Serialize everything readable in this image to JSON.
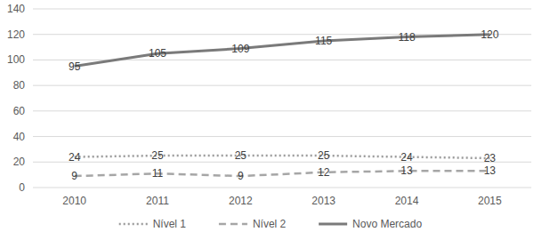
{
  "chart_data": {
    "type": "line",
    "categories": [
      "2010",
      "2011",
      "2012",
      "2013",
      "2014",
      "2015"
    ],
    "series": [
      {
        "name": "Nível 1",
        "color": "#9a9a9a",
        "line_style": "dotted",
        "values": [
          24,
          25,
          25,
          25,
          24,
          23
        ]
      },
      {
        "name": "Nível 2",
        "color": "#a6a6a6",
        "line_style": "dashed",
        "values": [
          9,
          11,
          9,
          12,
          13,
          13
        ]
      },
      {
        "name": "Novo Mercado",
        "color": "#7a7a7a",
        "line_style": "solid",
        "values": [
          95,
          105,
          109,
          115,
          118,
          120
        ]
      }
    ],
    "ylim": [
      0,
      140
    ],
    "yticks": [
      0,
      20,
      40,
      60,
      80,
      100,
      120,
      140
    ],
    "grid": true,
    "legend": "bottom",
    "data_labels": true
  }
}
